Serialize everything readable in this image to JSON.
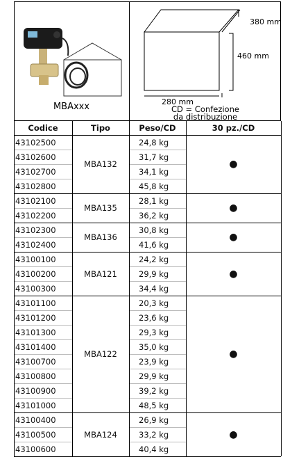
{
  "product": {
    "label": "MBAxxx"
  },
  "package": {
    "depth": "380 mm",
    "height": "460 mm",
    "width": "280 mm",
    "caption_line1": "CD = Confezione",
    "caption_line2": "da distribuzione"
  },
  "table": {
    "columns": [
      "Codice",
      "Tipo",
      "Peso/CD",
      "30 pz./CD"
    ],
    "groups": [
      {
        "tipo": "MBA132",
        "pieces": "●",
        "rows": [
          [
            "43102500",
            "24,8 kg"
          ],
          [
            "43102600",
            "31,7 kg"
          ],
          [
            "43102700",
            "34,1 kg"
          ],
          [
            "43102800",
            "45,8 kg"
          ]
        ]
      },
      {
        "tipo": "MBA135",
        "pieces": "●",
        "rows": [
          [
            "43102100",
            "28,1 kg"
          ],
          [
            "43102200",
            "36,2 kg"
          ]
        ]
      },
      {
        "tipo": "MBA136",
        "pieces": "●",
        "rows": [
          [
            "43102300",
            "30,8 kg"
          ],
          [
            "43102400",
            "41,6 kg"
          ]
        ]
      },
      {
        "tipo": "MBA121",
        "pieces": "●",
        "rows": [
          [
            "43100100",
            "24,2 kg"
          ],
          [
            "43100200",
            "29,9 kg"
          ],
          [
            "43100300",
            "34,4 kg"
          ]
        ]
      },
      {
        "tipo": "MBA122",
        "pieces": "●",
        "rows": [
          [
            "43101100",
            "20,3 kg"
          ],
          [
            "43101200",
            "23,6 kg"
          ],
          [
            "43101300",
            "29,3 kg"
          ],
          [
            "43101400",
            "35,0 kg"
          ],
          [
            "43100700",
            "23,9 kg"
          ],
          [
            "43100800",
            "29,9 kg"
          ],
          [
            "43100900",
            "39,2 kg"
          ],
          [
            "43101000",
            "48,5 kg"
          ]
        ]
      },
      {
        "tipo": "MBA124",
        "pieces": "●",
        "rows": [
          [
            "43100400",
            "26,9 kg"
          ],
          [
            "43100500",
            "33,2 kg"
          ],
          [
            "43100600",
            "40,4 kg"
          ]
        ]
      }
    ]
  }
}
